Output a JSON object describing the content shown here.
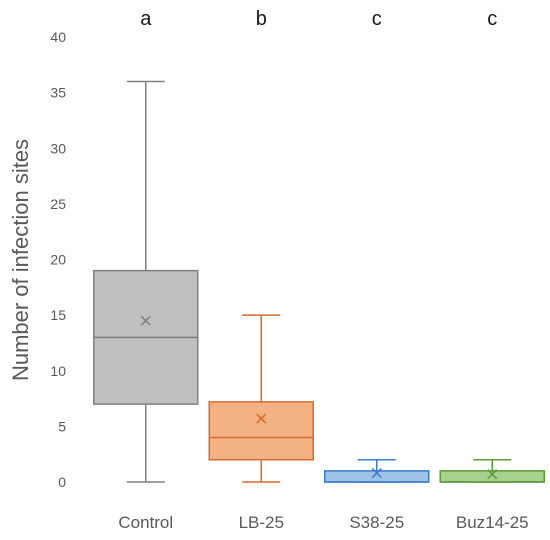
{
  "chart_data": {
    "type": "box",
    "ylabel": "Number of infection sites",
    "ylim": [
      0,
      40
    ],
    "yticks": [
      0,
      5,
      10,
      15,
      20,
      25,
      30,
      35,
      40
    ],
    "grid": false,
    "legend": "none",
    "categories": [
      "Control",
      "LB-25",
      "S38-25",
      "Buz14-25"
    ],
    "group_letters": [
      "a",
      "b",
      "c",
      "c"
    ],
    "boxes": [
      {
        "category": "Control",
        "min": 0,
        "q1": 7,
        "median": 13,
        "q3": 19,
        "max": 36,
        "mean": 14.5,
        "fill": "#bfbfbf",
        "stroke": "#808080"
      },
      {
        "category": "LB-25",
        "min": 0,
        "q1": 2,
        "median": 4,
        "q3": 7.2,
        "max": 15,
        "mean": 5.7,
        "fill": "#f4b183",
        "stroke": "#d86a2c"
      },
      {
        "category": "S38-25",
        "min": 0,
        "q1": 0,
        "median": 0,
        "q3": 1,
        "max": 2,
        "mean": 0.8,
        "fill": "#9dc3e6",
        "stroke": "#3d7cc9"
      },
      {
        "category": "Buz14-25",
        "min": 0,
        "q1": 0,
        "median": 0,
        "q3": 1,
        "max": 2,
        "mean": 0.7,
        "fill": "#a9d18e",
        "stroke": "#5a9b3a"
      }
    ]
  }
}
